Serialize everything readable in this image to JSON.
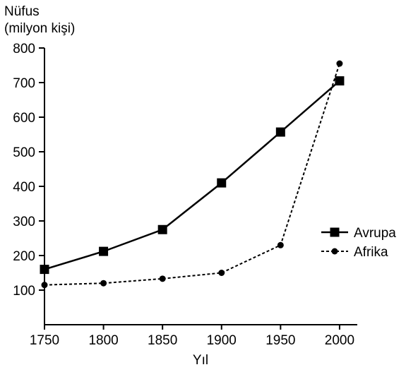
{
  "chart_data": {
    "type": "line",
    "ylabel_lines": [
      "Nüfus",
      "(milyon kişi)"
    ],
    "xlabel": "Yıl",
    "x": [
      1750,
      1800,
      1850,
      1900,
      1950,
      2000
    ],
    "xlim": [
      1750,
      2015
    ],
    "ylim": [
      0,
      800
    ],
    "yticks": [
      100,
      200,
      300,
      400,
      500,
      600,
      700,
      800
    ],
    "xticks": [
      1750,
      1800,
      1850,
      1900,
      1950,
      2000
    ],
    "grid": false,
    "legend_position": "right",
    "series": [
      {
        "name": "Avrupa",
        "values": [
          160,
          212,
          275,
          410,
          557,
          705
        ],
        "marker": "square",
        "line_style": "solid",
        "color": "#000000"
      },
      {
        "name": "Afrika",
        "values": [
          115,
          120,
          133,
          150,
          230,
          755
        ],
        "marker": "circle",
        "line_style": "dashed",
        "color": "#000000"
      }
    ]
  }
}
